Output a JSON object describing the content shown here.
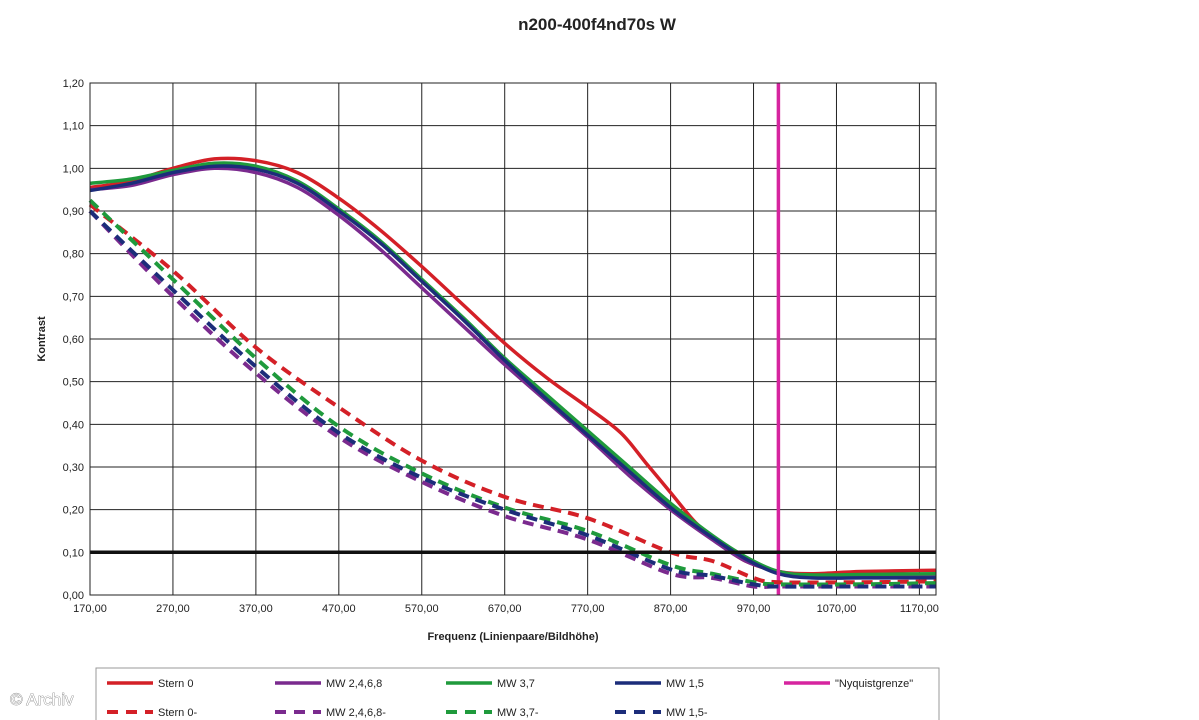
{
  "chart_data": {
    "type": "line",
    "title": "n200-400f4nd70s W",
    "xlabel": "Frequenz (Linienpaare/Bildhöhe)",
    "ylabel": "Kontrast",
    "xlim": [
      170,
      1190
    ],
    "ylim": [
      0,
      1.2
    ],
    "x_ticks": [
      "170,00",
      "270,00",
      "370,00",
      "470,00",
      "570,00",
      "670,00",
      "770,00",
      "870,00",
      "970,00",
      "1070,00",
      "1170,00"
    ],
    "y_ticks": [
      "0,00",
      "0,10",
      "0,20",
      "0,30",
      "0,40",
      "0,50",
      "0,60",
      "0,70",
      "0,80",
      "0,90",
      "1,00",
      "1,10",
      "1,20"
    ],
    "grid": true,
    "legend_position": "bottom",
    "watermark": "© Archiv",
    "series": [
      {
        "name": "Stern 0",
        "color": "#d42027",
        "style": "solid",
        "points": [
          [
            170,
            0.955
          ],
          [
            220,
            0.97
          ],
          [
            270,
            1.0
          ],
          [
            320,
            1.022
          ],
          [
            370,
            1.018
          ],
          [
            420,
            0.99
          ],
          [
            470,
            0.93
          ],
          [
            520,
            0.855
          ],
          [
            570,
            0.77
          ],
          [
            620,
            0.68
          ],
          [
            670,
            0.59
          ],
          [
            720,
            0.51
          ],
          [
            770,
            0.44
          ],
          [
            810,
            0.38
          ],
          [
            840,
            0.31
          ],
          [
            870,
            0.24
          ],
          [
            900,
            0.17
          ],
          [
            930,
            0.12
          ],
          [
            960,
            0.08
          ],
          [
            1000,
            0.055
          ],
          [
            1040,
            0.05
          ],
          [
            1100,
            0.055
          ],
          [
            1190,
            0.058
          ]
        ]
      },
      {
        "name": "MW 2,4,6,8",
        "color": "#7a2a8e",
        "style": "solid",
        "points": [
          [
            170,
            0.95
          ],
          [
            220,
            0.96
          ],
          [
            270,
            0.985
          ],
          [
            320,
            1.0
          ],
          [
            370,
            0.99
          ],
          [
            420,
            0.955
          ],
          [
            470,
            0.89
          ],
          [
            520,
            0.81
          ],
          [
            570,
            0.72
          ],
          [
            620,
            0.63
          ],
          [
            670,
            0.54
          ],
          [
            720,
            0.455
          ],
          [
            770,
            0.37
          ],
          [
            820,
            0.28
          ],
          [
            870,
            0.2
          ],
          [
            920,
            0.13
          ],
          [
            960,
            0.08
          ],
          [
            1000,
            0.055
          ],
          [
            1040,
            0.045
          ],
          [
            1100,
            0.045
          ],
          [
            1190,
            0.047
          ]
        ]
      },
      {
        "name": "MW 3,7",
        "color": "#1f9a3c",
        "style": "solid",
        "points": [
          [
            170,
            0.965
          ],
          [
            220,
            0.975
          ],
          [
            270,
            0.995
          ],
          [
            320,
            1.012
          ],
          [
            370,
            1.005
          ],
          [
            420,
            0.97
          ],
          [
            470,
            0.905
          ],
          [
            520,
            0.83
          ],
          [
            570,
            0.74
          ],
          [
            620,
            0.65
          ],
          [
            670,
            0.555
          ],
          [
            720,
            0.47
          ],
          [
            770,
            0.385
          ],
          [
            820,
            0.3
          ],
          [
            870,
            0.215
          ],
          [
            920,
            0.14
          ],
          [
            960,
            0.09
          ],
          [
            1000,
            0.055
          ],
          [
            1040,
            0.047
          ],
          [
            1100,
            0.048
          ],
          [
            1190,
            0.05
          ]
        ]
      },
      {
        "name": "MW 1,5",
        "color": "#1c2d7a",
        "style": "solid",
        "points": [
          [
            170,
            0.948
          ],
          [
            220,
            0.965
          ],
          [
            270,
            0.99
          ],
          [
            320,
            1.005
          ],
          [
            370,
            0.998
          ],
          [
            420,
            0.965
          ],
          [
            470,
            0.9
          ],
          [
            520,
            0.825
          ],
          [
            570,
            0.735
          ],
          [
            620,
            0.645
          ],
          [
            670,
            0.55
          ],
          [
            720,
            0.46
          ],
          [
            770,
            0.375
          ],
          [
            820,
            0.29
          ],
          [
            870,
            0.205
          ],
          [
            920,
            0.135
          ],
          [
            960,
            0.085
          ],
          [
            1000,
            0.05
          ],
          [
            1040,
            0.04
          ],
          [
            1100,
            0.04
          ],
          [
            1190,
            0.04
          ]
        ]
      },
      {
        "name": "\"Nyquistgrenze\"",
        "color": "#d6249f",
        "style": "solid",
        "points": [
          [
            1000,
            0
          ],
          [
            1000,
            1.2
          ]
        ]
      },
      {
        "name": "Stern 0-",
        "color": "#d42027",
        "style": "dashed",
        "points": [
          [
            170,
            0.915
          ],
          [
            270,
            0.76
          ],
          [
            370,
            0.58
          ],
          [
            470,
            0.44
          ],
          [
            570,
            0.315
          ],
          [
            670,
            0.23
          ],
          [
            770,
            0.18
          ],
          [
            870,
            0.1
          ],
          [
            920,
            0.08
          ],
          [
            970,
            0.04
          ],
          [
            1000,
            0.03
          ],
          [
            1100,
            0.03
          ],
          [
            1190,
            0.032
          ]
        ]
      },
      {
        "name": "MW 2,4,6,8-",
        "color": "#7a2a8e",
        "style": "dashed",
        "points": [
          [
            170,
            0.9
          ],
          [
            270,
            0.7
          ],
          [
            370,
            0.52
          ],
          [
            470,
            0.37
          ],
          [
            570,
            0.265
          ],
          [
            670,
            0.185
          ],
          [
            770,
            0.13
          ],
          [
            870,
            0.05
          ],
          [
            920,
            0.04
          ],
          [
            970,
            0.02
          ],
          [
            1000,
            0.02
          ],
          [
            1100,
            0.02
          ],
          [
            1190,
            0.02
          ]
        ]
      },
      {
        "name": "MW 3,7-",
        "color": "#1f9a3c",
        "style": "dashed",
        "points": [
          [
            170,
            0.925
          ],
          [
            270,
            0.74
          ],
          [
            370,
            0.555
          ],
          [
            470,
            0.395
          ],
          [
            570,
            0.285
          ],
          [
            670,
            0.205
          ],
          [
            770,
            0.15
          ],
          [
            870,
            0.07
          ],
          [
            920,
            0.05
          ],
          [
            970,
            0.03
          ],
          [
            1000,
            0.025
          ],
          [
            1100,
            0.025
          ],
          [
            1190,
            0.028
          ]
        ]
      },
      {
        "name": "MW 1,5-",
        "color": "#1c2d7a",
        "style": "dashed",
        "points": [
          [
            170,
            0.9
          ],
          [
            270,
            0.715
          ],
          [
            370,
            0.535
          ],
          [
            470,
            0.38
          ],
          [
            570,
            0.275
          ],
          [
            670,
            0.2
          ],
          [
            770,
            0.14
          ],
          [
            870,
            0.06
          ],
          [
            920,
            0.045
          ],
          [
            970,
            0.025
          ],
          [
            1000,
            0.02
          ],
          [
            1100,
            0.02
          ],
          [
            1190,
            0.02
          ]
        ]
      },
      {
        "name": "",
        "color": "#111111",
        "style": "solid",
        "points": [
          [
            170,
            0.1
          ],
          [
            1190,
            0.1
          ]
        ]
      }
    ]
  }
}
